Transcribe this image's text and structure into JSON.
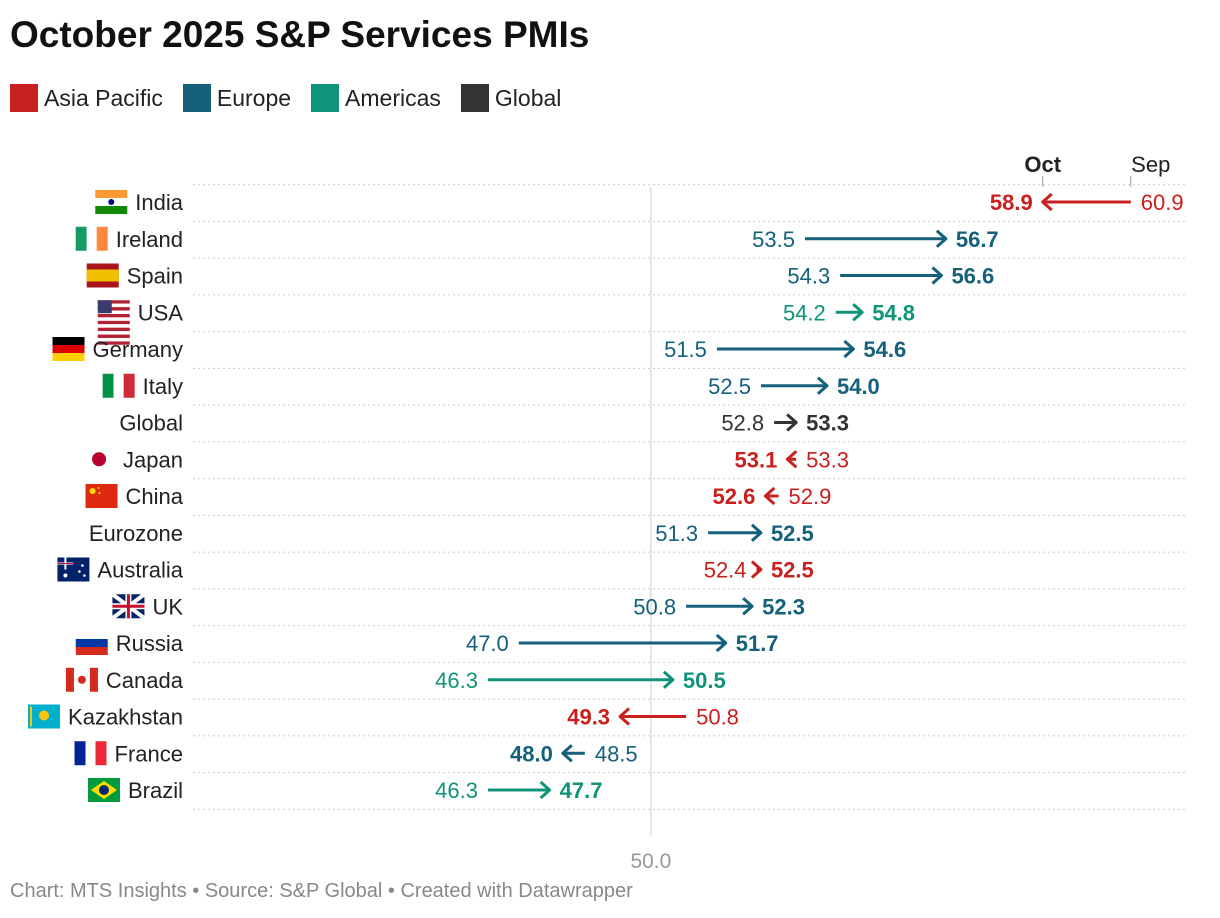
{
  "title": "October 2025 S&P Services PMIs",
  "footer": "Chart: MTS Insights • Source: S&P Global • Created with Datawrapper",
  "legend": [
    {
      "label": "Asia Pacific",
      "color": "#c8201e"
    },
    {
      "label": "Europe",
      "color": "#15607a"
    },
    {
      "label": "Americas",
      "color": "#0f9479"
    },
    {
      "label": "Global",
      "color": "#333333"
    }
  ],
  "chart_data": {
    "type": "arrow",
    "column_headers": {
      "end": "Oct",
      "start": "Sep"
    },
    "reference_line": {
      "value": 50.0,
      "label": "50.0"
    },
    "xlim": [
      39.6,
      62.2
    ],
    "grid": "horizontal dotted",
    "rows": [
      {
        "label": "India",
        "flag": "flag-india",
        "region": "Asia Pacific",
        "sep": 60.9,
        "oct": 58.9
      },
      {
        "label": "Ireland",
        "flag": "flag-ireland",
        "region": "Europe",
        "sep": 53.5,
        "oct": 56.7
      },
      {
        "label": "Spain",
        "flag": "flag-spain",
        "region": "Europe",
        "sep": 54.3,
        "oct": 56.6
      },
      {
        "label": "USA",
        "flag": "flag-usa",
        "region": "Americas",
        "sep": 54.2,
        "oct": 54.8
      },
      {
        "label": "Germany",
        "flag": "flag-germany",
        "region": "Europe",
        "sep": 51.5,
        "oct": 54.6
      },
      {
        "label": "Italy",
        "flag": "flag-italy",
        "region": "Europe",
        "sep": 52.5,
        "oct": 54.0
      },
      {
        "label": "Global",
        "flag": "",
        "region": "Global",
        "sep": 52.8,
        "oct": 53.3
      },
      {
        "label": "Japan",
        "flag": "flag-japan",
        "region": "Asia Pacific",
        "sep": 53.3,
        "oct": 53.1
      },
      {
        "label": "China",
        "flag": "flag-china",
        "region": "Asia Pacific",
        "sep": 52.9,
        "oct": 52.6
      },
      {
        "label": "Eurozone",
        "flag": "",
        "region": "Europe",
        "sep": 51.3,
        "oct": 52.5
      },
      {
        "label": "Australia",
        "flag": "flag-australia",
        "region": "Asia Pacific",
        "sep": 52.4,
        "oct": 52.5
      },
      {
        "label": "UK",
        "flag": "flag-uk",
        "region": "Europe",
        "sep": 50.8,
        "oct": 52.3
      },
      {
        "label": "Russia",
        "flag": "flag-russia",
        "region": "Europe",
        "sep": 47.0,
        "oct": 51.7
      },
      {
        "label": "Canada",
        "flag": "flag-canada",
        "region": "Americas",
        "sep": 46.3,
        "oct": 50.5
      },
      {
        "label": "Kazakhstan",
        "flag": "flag-kazakhstan",
        "region": "Asia Pacific",
        "sep": 50.8,
        "oct": 49.3
      },
      {
        "label": "France",
        "flag": "flag-france",
        "region": "Europe",
        "sep": 48.5,
        "oct": 48.0
      },
      {
        "label": "Brazil",
        "flag": "flag-brazil",
        "region": "Americas",
        "sep": 46.3,
        "oct": 47.7
      }
    ]
  }
}
